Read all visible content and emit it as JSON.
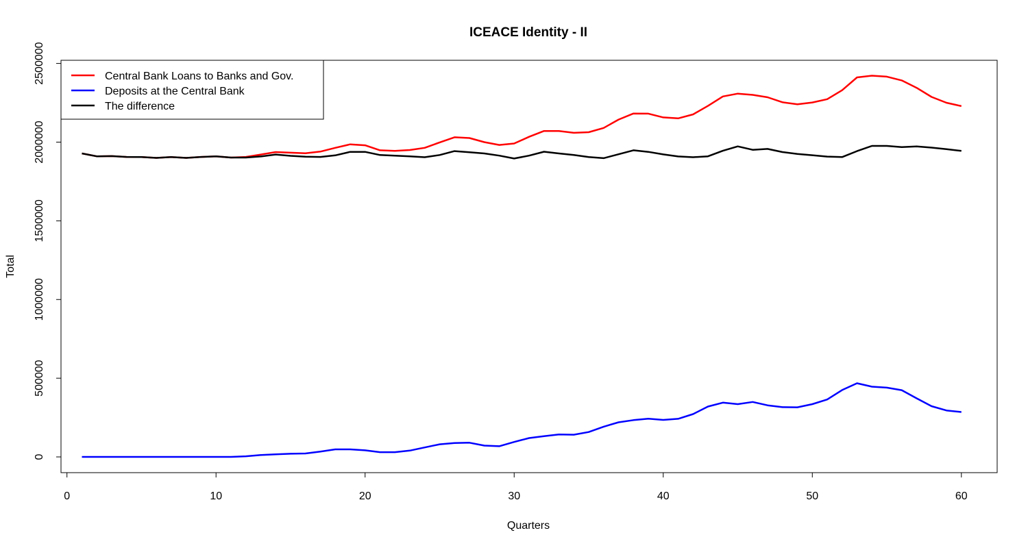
{
  "chart_data": {
    "type": "line",
    "title": "ICEACE Identity - II",
    "xlabel": "Quarters",
    "ylabel": "Total",
    "xlim": [
      -0.4,
      62.4
    ],
    "ylim": [
      -100000,
      2520000
    ],
    "xticks": [
      0,
      10,
      20,
      30,
      40,
      50,
      60
    ],
    "yticks": [
      0,
      500000,
      1000000,
      1500000,
      2000000,
      2500000
    ],
    "grid": false,
    "legend": "top-left",
    "x": [
      1,
      2,
      3,
      4,
      5,
      6,
      7,
      8,
      9,
      10,
      11,
      12,
      13,
      14,
      15,
      16,
      17,
      18,
      19,
      20,
      21,
      22,
      23,
      24,
      25,
      26,
      27,
      28,
      29,
      30,
      31,
      32,
      33,
      34,
      35,
      36,
      37,
      38,
      39,
      40,
      41,
      42,
      43,
      44,
      45,
      46,
      47,
      48,
      49,
      50,
      51,
      52,
      53,
      54,
      55,
      56,
      57,
      58,
      59,
      60
    ],
    "series": [
      {
        "name": "Central Bank Loans to Banks and Gov.",
        "color": "#ff0000",
        "values": [
          1928000,
          1910000,
          1911000,
          1906000,
          1905000,
          1900000,
          1905000,
          1900000,
          1906000,
          1910000,
          1902000,
          1906000,
          1921000,
          1937000,
          1933000,
          1929000,
          1940000,
          1964000,
          1986000,
          1980000,
          1948000,
          1944000,
          1950000,
          1964000,
          1998000,
          2031000,
          2026000,
          2000000,
          1982000,
          1991000,
          2034000,
          2071000,
          2071000,
          2059000,
          2063000,
          2090000,
          2143000,
          2182000,
          2181000,
          2157000,
          2151000,
          2176000,
          2230000,
          2290000,
          2308000,
          2300000,
          2285000,
          2253000,
          2240000,
          2252000,
          2273000,
          2330000,
          2411000,
          2422000,
          2416000,
          2392000,
          2345000,
          2287000,
          2250000,
          2229000
        ]
      },
      {
        "name": "Deposits at the Central Bank",
        "color": "#0000ff",
        "values": [
          0,
          0,
          0,
          0,
          0,
          0,
          0,
          0,
          0,
          0,
          0,
          4000,
          12000,
          16000,
          20000,
          22000,
          34000,
          48000,
          48000,
          42000,
          30000,
          30000,
          40000,
          60000,
          80000,
          88000,
          90000,
          72000,
          68000,
          95000,
          120000,
          132000,
          143000,
          141000,
          158000,
          192000,
          220000,
          234000,
          243000,
          235000,
          242000,
          272000,
          320000,
          345000,
          335000,
          349000,
          328000,
          316000,
          315000,
          335000,
          365000,
          425000,
          468000,
          446000,
          440000,
          424000,
          372000,
          322000,
          295000,
          285000
        ]
      },
      {
        "name": "The difference",
        "color": "#000000",
        "values": [
          1928000,
          1910000,
          1911000,
          1906000,
          1905000,
          1900000,
          1905000,
          1900000,
          1906000,
          1910000,
          1902000,
          1902000,
          1909000,
          1921000,
          1913000,
          1907000,
          1906000,
          1916000,
          1938000,
          1938000,
          1918000,
          1914000,
          1910000,
          1904000,
          1918000,
          1943000,
          1936000,
          1928000,
          1914000,
          1896000,
          1914000,
          1939000,
          1928000,
          1918000,
          1905000,
          1898000,
          1923000,
          1948000,
          1938000,
          1922000,
          1909000,
          1904000,
          1910000,
          1945000,
          1973000,
          1951000,
          1957000,
          1937000,
          1925000,
          1917000,
          1908000,
          1905000,
          1943000,
          1976000,
          1976000,
          1968000,
          1973000,
          1965000,
          1955000,
          1944000
        ]
      }
    ]
  }
}
